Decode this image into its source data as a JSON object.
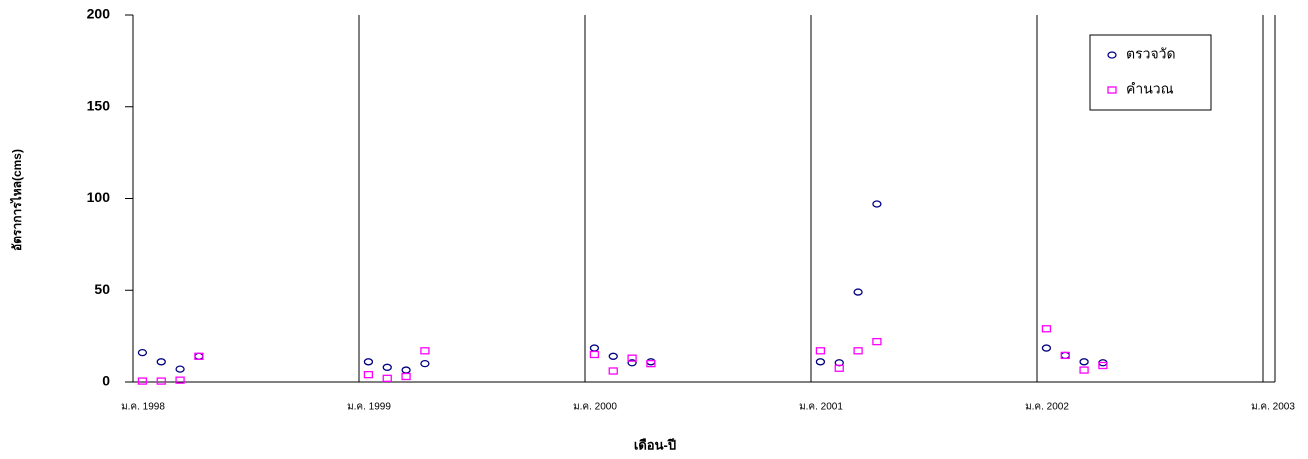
{
  "chart_data": {
    "type": "scatter",
    "x_label": "เดือน-ปี",
    "y_label": "อัตราการไหล(cms)",
    "x": [
      "1998-01",
      "1998-02",
      "1998-03",
      "1998-04",
      "1999-01",
      "1999-02",
      "1999-03",
      "1999-04",
      "2000-01",
      "2000-02",
      "2000-03",
      "2000-04",
      "2001-01",
      "2001-02",
      "2001-03",
      "2001-04",
      "2002-01",
      "2002-02",
      "2002-03",
      "2002-04"
    ],
    "series": [
      {
        "name": "ตรวจวัด",
        "color": "#000080",
        "marker": "circle",
        "values": [
          16,
          11,
          7,
          14,
          11,
          8,
          6.5,
          10,
          18.5,
          14,
          10.5,
          11,
          11,
          10.5,
          49,
          97,
          18.5,
          14.5,
          11,
          10.5
        ]
      },
      {
        "name": "คำนวณ",
        "color": "#ff00ff",
        "marker": "square",
        "values": [
          0.5,
          0.5,
          1,
          14,
          4,
          2,
          3,
          17,
          15,
          6,
          13,
          10,
          17,
          7.5,
          17,
          22,
          29,
          14.5,
          6.5,
          9
        ]
      }
    ],
    "xlim": [
      "1998-01",
      "2003-01"
    ],
    "xticks": [
      {
        "value": "1998-01",
        "label": "ม.ค. 1998"
      },
      {
        "value": "1999-01",
        "label": "ม.ค. 1999"
      },
      {
        "value": "2000-01",
        "label": "ม.ค. 2000"
      },
      {
        "value": "2001-01",
        "label": "ม.ค. 2001"
      },
      {
        "value": "2002-01",
        "label": "ม.ค. 2002"
      },
      {
        "value": "2003-01",
        "label": "ม.ค. 2003"
      }
    ],
    "ylim": [
      0,
      200
    ],
    "yticks": [
      0,
      50,
      100,
      150,
      200
    ],
    "grid": true,
    "legend": "upper right"
  }
}
